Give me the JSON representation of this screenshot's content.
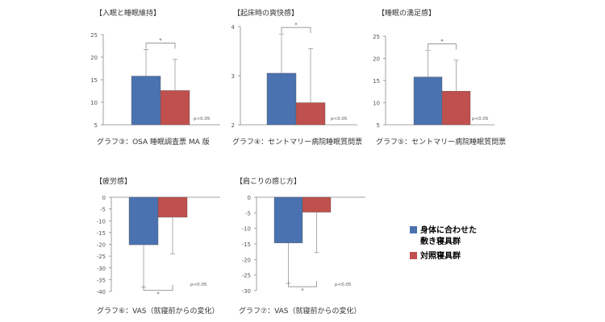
{
  "colors": {
    "group1": "#4a72b0",
    "group2": "#c0504d",
    "axis": "#888888",
    "error": "#999999",
    "text": "#333333"
  },
  "legend": {
    "group1_line1": "身体に合わせた",
    "group1_line2": "敷き寝具群",
    "group2": "対照寝具群"
  },
  "chart_data": [
    {
      "type": "bar",
      "title": "【入眠と睡眠維持】",
      "caption": "グラフ③：OSA 睡眠調査票 MA 版",
      "series": [
        {
          "name": "身体に合わせた敷き寝具群",
          "values": [
            15.8
          ]
        },
        {
          "name": "対照寝具群",
          "values": [
            12.6
          ]
        }
      ],
      "errors": [
        5.9,
        6.9
      ],
      "ylim": [
        5,
        25
      ],
      "ticks": [
        5,
        10,
        15,
        20,
        25
      ],
      "ticklabels": [
        "5",
        "10",
        "15",
        "20",
        "25"
      ],
      "sig": "*",
      "pvalue": "p<0.05"
    },
    {
      "type": "bar",
      "title": "【起床時の爽快感】",
      "caption": "グラフ④：セントマリー病院睡眠質問票",
      "series": [
        {
          "name": "身体に合わせた敷き寝具群",
          "values": [
            3.05
          ]
        },
        {
          "name": "対照寝具群",
          "values": [
            2.45
          ]
        }
      ],
      "errors": [
        0.8,
        1.1
      ],
      "ylim": [
        2,
        4
      ],
      "ticks": [
        2,
        3,
        4
      ],
      "ticklabels": [
        "2",
        "3",
        "4"
      ],
      "sig": "*",
      "pvalue": "p<0.05"
    },
    {
      "type": "bar",
      "title": "【睡眠の満足感】",
      "caption": "グラフ⑤：セントマリー病院睡眠質問票",
      "series": [
        {
          "name": "身体に合わせた敷き寝具群",
          "values": [
            15.8
          ]
        },
        {
          "name": "対照寝具群",
          "values": [
            12.6
          ]
        }
      ],
      "errors": [
        6.0,
        7.0
      ],
      "ylim": [
        5,
        25
      ],
      "ticks": [
        5,
        10,
        15,
        20,
        25
      ],
      "ticklabels": [
        "5",
        "10",
        "15",
        "20",
        "25"
      ],
      "sig": "*",
      "pvalue": "p<0.05"
    },
    {
      "type": "bar",
      "title": "【疲労感】",
      "caption": "グラフ⑥：VAS（就寝前からの変化）",
      "series": [
        {
          "name": "身体に合わせた敷き寝具群",
          "values": [
            -20.2
          ]
        },
        {
          "name": "対照寝具群",
          "values": [
            -8.5
          ]
        }
      ],
      "errors": [
        18.0,
        15.5
      ],
      "ylim": [
        -40,
        0
      ],
      "ticks": [
        0,
        -5,
        -10,
        -15,
        -20,
        -25,
        -30,
        -35,
        -40
      ],
      "ticklabels": [
        "0",
        "-5",
        "-10",
        "-15",
        "-20",
        "-25",
        "-30",
        "-35",
        "-40"
      ],
      "sig": "*",
      "pvalue": "p<0.05"
    },
    {
      "type": "bar",
      "title": "【肩こりの感じ方】",
      "caption": "グラフ⑦：VAS（就寝前からの変化）",
      "series": [
        {
          "name": "身体に合わせた敷き寝具群",
          "values": [
            -14.7
          ]
        },
        {
          "name": "対照寝具群",
          "values": [
            -4.8
          ]
        }
      ],
      "errors": [
        13.0,
        13.0
      ],
      "ylim": [
        -30,
        0
      ],
      "ticks": [
        0,
        -5,
        -10,
        -15,
        -20,
        -25,
        -30
      ],
      "ticklabels": [
        "0",
        "-5",
        "-10",
        "-15",
        "-20",
        "-25",
        "-30"
      ],
      "sig": "*",
      "pvalue": "p<0.05"
    }
  ]
}
